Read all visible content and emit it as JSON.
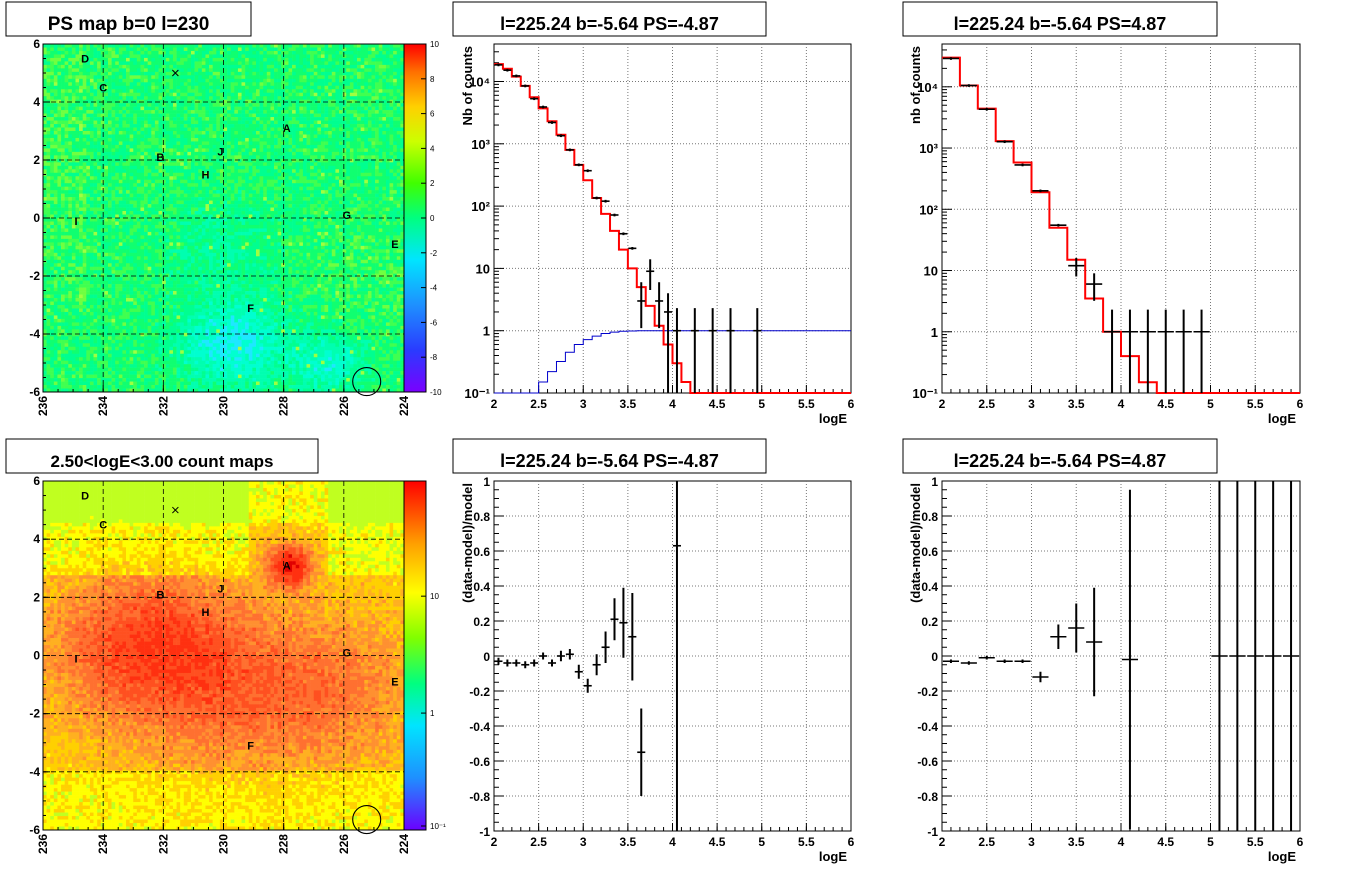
{
  "titles": {
    "map1": "PS map b=0 l=230",
    "map2": "2.50<logE<3.00 count maps",
    "spec1": "l=225.24 b=-5.64 PS=-4.87",
    "spec2": "l=225.24 b=-5.64 PS=4.87",
    "res1": "l=225.24 b=-5.64 PS=-4.87",
    "res2": "l=225.24 b=-5.64 PS=4.87"
  },
  "labels": {
    "logE": "logE",
    "nb_counts_cap": "Nb of counts",
    "nb_counts_low": "nb of counts",
    "residual": "(data-model)/model"
  },
  "chart_data": [
    {
      "type": "heatmap",
      "title": "PS map b=0 l=230",
      "xlim": [
        236,
        224
      ],
      "ylim": [
        -6,
        6
      ],
      "xticks": [
        "236",
        "234",
        "232",
        "230",
        "228",
        "226",
        "224"
      ],
      "yticks": [
        "6",
        "4",
        "2",
        "0",
        "-2",
        "-4",
        "-6"
      ],
      "colorbar": {
        "min": -10,
        "max": 10,
        "ticks": [
          "10",
          "8",
          "6",
          "4",
          "2",
          "0",
          "-2",
          "-4",
          "-6",
          "-8",
          "-10"
        ]
      },
      "sources": [
        {
          "label": "D",
          "l": 234.6,
          "b": 5.5
        },
        {
          "label": "C",
          "l": 234.0,
          "b": 4.5
        },
        {
          "label": "A",
          "l": 227.9,
          "b": 3.1
        },
        {
          "label": "B",
          "l": 232.1,
          "b": 2.1
        },
        {
          "label": "J",
          "l": 230.1,
          "b": 2.3
        },
        {
          "label": "H",
          "l": 230.6,
          "b": 1.5
        },
        {
          "label": "I",
          "l": 234.9,
          "b": -0.1
        },
        {
          "label": "G",
          "l": 225.9,
          "b": 0.1
        },
        {
          "label": "E",
          "l": 224.3,
          "b": -0.9
        },
        {
          "label": "F",
          "l": 229.1,
          "b": -3.1
        }
      ],
      "cross": {
        "l": 231.6,
        "b": 5.0
      },
      "circle": {
        "l": 225.24,
        "b": -5.64
      }
    },
    {
      "type": "heatmap",
      "title": "2.50<logE<3.00 count maps",
      "xlim": [
        236,
        224
      ],
      "ylim": [
        -6,
        6
      ],
      "xticks": [
        "236",
        "234",
        "232",
        "230",
        "228",
        "226",
        "224"
      ],
      "yticks": [
        "6",
        "4",
        "2",
        "0",
        "-2",
        "-4",
        "-6"
      ],
      "colorbar": {
        "scale": "log",
        "ticks": [
          "10",
          "1",
          "10⁻¹"
        ]
      },
      "sources": [
        {
          "label": "D",
          "l": 234.6,
          "b": 5.5
        },
        {
          "label": "C",
          "l": 234.0,
          "b": 4.5
        },
        {
          "label": "A",
          "l": 227.9,
          "b": 3.1
        },
        {
          "label": "B",
          "l": 232.1,
          "b": 2.1
        },
        {
          "label": "J",
          "l": 230.1,
          "b": 2.3
        },
        {
          "label": "H",
          "l": 230.6,
          "b": 1.5
        },
        {
          "label": "I",
          "l": 234.9,
          "b": -0.1
        },
        {
          "label": "G",
          "l": 225.9,
          "b": 0.1
        },
        {
          "label": "E",
          "l": 224.3,
          "b": -0.9
        },
        {
          "label": "F",
          "l": 229.1,
          "b": -3.1
        }
      ],
      "cross": {
        "l": 231.6,
        "b": 5.0
      },
      "circle": {
        "l": 225.24,
        "b": -5.64
      }
    },
    {
      "type": "line",
      "title": "l=225.24 b=-5.64 PS=-4.87",
      "xlabel": "logE",
      "ylabel": "Nb of counts",
      "xlim": [
        2,
        6
      ],
      "yscale": "log",
      "ylim": [
        0.1,
        40000
      ],
      "xticks": [
        "2",
        "2.5",
        "3",
        "3.5",
        "4",
        "4.5",
        "5",
        "5.5",
        "6"
      ],
      "yticks": [
        {
          "v": 0.1,
          "t": "10⁻¹"
        },
        {
          "v": 1,
          "t": "1"
        },
        {
          "v": 10,
          "t": "10"
        },
        {
          "v": 100,
          "t": "10²"
        },
        {
          "v": 1000,
          "t": "10³"
        },
        {
          "v": 10000,
          "t": "10⁴"
        }
      ],
      "grid": true,
      "binwidth": 0.1,
      "model": [
        19000,
        16000,
        12000,
        8500,
        5600,
        3700,
        2300,
        1400,
        800,
        460,
        260,
        135,
        75,
        40,
        20,
        10,
        5.0,
        2.5,
        1.2,
        0.6,
        0.3,
        0.15,
        0.1,
        0.1,
        0.1,
        0.1,
        0.1,
        0.1,
        0.1,
        0.1,
        0.1,
        0.1,
        0.1,
        0.1,
        0.1,
        0.1,
        0.1,
        0.1,
        0.1,
        0.1
      ],
      "exposure": [
        0.1,
        0.1,
        0.1,
        0.1,
        0.1,
        0.15,
        0.22,
        0.32,
        0.45,
        0.6,
        0.72,
        0.82,
        0.9,
        0.95,
        0.98,
        0.99,
        1,
        1,
        1,
        1,
        1,
        1,
        1,
        1,
        1,
        1,
        1,
        1,
        1,
        1,
        1,
        1,
        1,
        1,
        1,
        1,
        1,
        1,
        1,
        1
      ],
      "points": [
        {
          "x": 2.05,
          "y": 18500
        },
        {
          "x": 2.15,
          "y": 15200
        },
        {
          "x": 2.25,
          "y": 12300
        },
        {
          "x": 2.35,
          "y": 8500
        },
        {
          "x": 2.45,
          "y": 5300
        },
        {
          "x": 2.55,
          "y": 3900
        },
        {
          "x": 2.65,
          "y": 2200
        },
        {
          "x": 2.75,
          "y": 1350
        },
        {
          "x": 2.85,
          "y": 800
        },
        {
          "x": 2.95,
          "y": 460
        },
        {
          "x": 3.05,
          "y": 370
        },
        {
          "x": 3.15,
          "y": 135
        },
        {
          "x": 3.25,
          "y": 120
        },
        {
          "x": 3.35,
          "y": 72
        },
        {
          "x": 3.45,
          "y": 36
        },
        {
          "x": 3.55,
          "y": 21
        },
        {
          "x": 3.65,
          "y": 3,
          "lo": 1.1,
          "hi": 6
        },
        {
          "x": 3.75,
          "y": 9,
          "lo": 4.5,
          "hi": 14
        },
        {
          "x": 3.85,
          "y": 3,
          "lo": 1.1,
          "hi": 6
        },
        {
          "x": 3.95,
          "y": 2,
          "lo": 0.1,
          "hi": 4
        },
        {
          "x": 4.05,
          "y": 1,
          "lo": 0.1,
          "hi": 2.3
        },
        {
          "x": 4.25,
          "y": 1,
          "lo": 0.1,
          "hi": 2.3
        },
        {
          "x": 4.45,
          "y": 1,
          "lo": 0.1,
          "hi": 2.3
        },
        {
          "x": 4.65,
          "y": 1,
          "lo": 0.1,
          "hi": 2.3
        },
        {
          "x": 4.95,
          "y": 1,
          "lo": 0.1,
          "hi": 2.3
        }
      ]
    },
    {
      "type": "line",
      "title": "l=225.24 b=-5.64 PS=4.87",
      "xlabel": "logE",
      "ylabel": "nb of counts",
      "xlim": [
        2,
        6
      ],
      "yscale": "log",
      "ylim": [
        0.1,
        50000
      ],
      "xticks": [
        "2",
        "2.5",
        "3",
        "3.5",
        "4",
        "4.5",
        "5",
        "5.5",
        "6"
      ],
      "yticks": [
        {
          "v": 0.1,
          "t": "10⁻¹"
        },
        {
          "v": 1,
          "t": "1"
        },
        {
          "v": 10,
          "t": "10"
        },
        {
          "v": 100,
          "t": "10²"
        },
        {
          "v": 1000,
          "t": "10³"
        },
        {
          "v": 10000,
          "t": "10⁴"
        }
      ],
      "grid": true,
      "binwidth": 0.2,
      "model": [
        30000,
        10500,
        4400,
        1300,
        580,
        190,
        50,
        15,
        3.5,
        1,
        0.4,
        0.15,
        0.1,
        0.1,
        0.1,
        0.1,
        0.1,
        0.1,
        0.1,
        0.1
      ],
      "points": [
        {
          "x": 2.1,
          "y": 29000
        },
        {
          "x": 2.3,
          "y": 10500
        },
        {
          "x": 2.5,
          "y": 4300
        },
        {
          "x": 2.7,
          "y": 1270
        },
        {
          "x": 2.9,
          "y": 530
        },
        {
          "x": 3.1,
          "y": 200
        },
        {
          "x": 3.3,
          "y": 55
        },
        {
          "x": 3.5,
          "y": 12,
          "lo": 8,
          "hi": 16
        },
        {
          "x": 3.7,
          "y": 6,
          "lo": 3.2,
          "hi": 9
        },
        {
          "x": 3.9,
          "y": 1,
          "lo": 0.1,
          "hi": 2.3
        },
        {
          "x": 4.1,
          "y": 1,
          "lo": 0.1,
          "hi": 2.3
        },
        {
          "x": 4.3,
          "y": 1,
          "lo": 0.1,
          "hi": 2.3
        },
        {
          "x": 4.5,
          "y": 1,
          "lo": 0.1,
          "hi": 2.3
        },
        {
          "x": 4.7,
          "y": 1,
          "lo": 0.1,
          "hi": 2.3
        },
        {
          "x": 4.9,
          "y": 1,
          "lo": 0.1,
          "hi": 2.3
        }
      ]
    },
    {
      "type": "scatter",
      "title": "l=225.24 b=-5.64 PS=-4.87",
      "xlabel": "logE",
      "ylabel": "(data-model)/model",
      "xlim": [
        2,
        6
      ],
      "ylim": [
        -1,
        1
      ],
      "xticks": [
        "2",
        "2.5",
        "3",
        "3.5",
        "4",
        "4.5",
        "5",
        "5.5",
        "6"
      ],
      "yticks": [
        "1",
        "0.8",
        "0.6",
        "0.4",
        "0.2",
        "0",
        "-0.2",
        "-0.4",
        "-0.6",
        "-0.8",
        "-1"
      ],
      "grid": true,
      "binwidth": 0.1,
      "points": [
        {
          "x": 2.05,
          "y": -0.03,
          "e": 0.02
        },
        {
          "x": 2.15,
          "y": -0.04,
          "e": 0.02
        },
        {
          "x": 2.25,
          "y": -0.04,
          "e": 0.02
        },
        {
          "x": 2.35,
          "y": -0.05,
          "e": 0.02
        },
        {
          "x": 2.45,
          "y": -0.04,
          "e": 0.02
        },
        {
          "x": 2.55,
          "y": 0.0,
          "e": 0.02
        },
        {
          "x": 2.65,
          "y": -0.04,
          "e": 0.02
        },
        {
          "x": 2.75,
          "y": 0.0,
          "e": 0.03
        },
        {
          "x": 2.85,
          "y": 0.01,
          "e": 0.03
        },
        {
          "x": 2.95,
          "y": -0.09,
          "e": 0.04
        },
        {
          "x": 3.05,
          "y": -0.17,
          "e": 0.04
        },
        {
          "x": 3.15,
          "y": -0.05,
          "e": 0.06
        },
        {
          "x": 3.25,
          "y": 0.05,
          "e": 0.09
        },
        {
          "x": 3.35,
          "y": 0.21,
          "e": 0.12
        },
        {
          "x": 3.45,
          "y": 0.19,
          "e": 0.2
        },
        {
          "x": 3.55,
          "y": 0.11,
          "e": 0.25
        },
        {
          "x": 3.65,
          "y": -0.55,
          "e": 0.25
        },
        {
          "x": 4.05,
          "y": 0.63,
          "e": 1.8
        }
      ]
    },
    {
      "type": "scatter",
      "title": "l=225.24 b=-5.64 PS=4.87",
      "xlabel": "logE",
      "ylabel": "(data-model)/model",
      "xlim": [
        2,
        6
      ],
      "ylim": [
        -1,
        1
      ],
      "xticks": [
        "2",
        "2.5",
        "3",
        "3.5",
        "4",
        "4.5",
        "5",
        "5.5",
        "6"
      ],
      "yticks": [
        "1",
        "0.8",
        "0.6",
        "0.4",
        "0.2",
        "0",
        "-0.2",
        "-0.4",
        "-0.6",
        "-0.8",
        "-1"
      ],
      "grid": true,
      "binwidth": 0.2,
      "points": [
        {
          "x": 2.1,
          "y": -0.03,
          "e": 0.01
        },
        {
          "x": 2.3,
          "y": -0.04,
          "e": 0.01
        },
        {
          "x": 2.5,
          "y": -0.01,
          "e": 0.01
        },
        {
          "x": 2.7,
          "y": -0.03,
          "e": 0.01
        },
        {
          "x": 2.9,
          "y": -0.03,
          "e": 0.01
        },
        {
          "x": 3.1,
          "y": -0.12,
          "e": 0.03
        },
        {
          "x": 3.3,
          "y": 0.11,
          "e": 0.07
        },
        {
          "x": 3.5,
          "y": 0.16,
          "e": 0.14
        },
        {
          "x": 3.7,
          "y": 0.08,
          "e": 0.31
        },
        {
          "x": 4.1,
          "y": -0.02,
          "e": 0.97
        },
        {
          "x": 5.1,
          "y": 0,
          "e": 2
        },
        {
          "x": 5.3,
          "y": 0,
          "e": 2
        },
        {
          "x": 5.5,
          "y": 0,
          "e": 2
        },
        {
          "x": 5.7,
          "y": 0,
          "e": 2
        },
        {
          "x": 5.9,
          "y": 0,
          "e": 2
        }
      ]
    }
  ]
}
